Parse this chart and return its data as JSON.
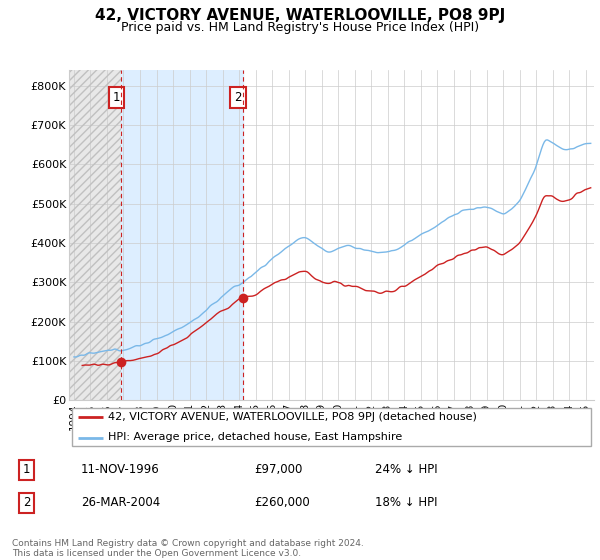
{
  "title": "42, VICTORY AVENUE, WATERLOOVILLE, PO8 9PJ",
  "subtitle": "Price paid vs. HM Land Registry's House Price Index (HPI)",
  "ylabel_ticks": [
    "£0",
    "£100K",
    "£200K",
    "£300K",
    "£400K",
    "£500K",
    "£600K",
    "£700K",
    "£800K"
  ],
  "ytick_values": [
    0,
    100000,
    200000,
    300000,
    400000,
    500000,
    600000,
    700000,
    800000
  ],
  "ylim": [
    0,
    840000
  ],
  "xlim_start": 1993.7,
  "xlim_end": 2025.5,
  "hpi_color": "#7ab8e8",
  "price_color": "#cc2222",
  "marker1_date": 1996.87,
  "marker1_price": 97000,
  "marker2_date": 2004.24,
  "marker2_price": 260000,
  "legend_label1": "42, VICTORY AVENUE, WATERLOOVILLE, PO8 9PJ (detached house)",
  "legend_label2": "HPI: Average price, detached house, East Hampshire",
  "table_row1_num": "1",
  "table_row1_date": "11-NOV-1996",
  "table_row1_price": "£97,000",
  "table_row1_hpi": "24% ↓ HPI",
  "table_row2_num": "2",
  "table_row2_date": "26-MAR-2004",
  "table_row2_price": "£260,000",
  "table_row2_hpi": "18% ↓ HPI",
  "footnote": "Contains HM Land Registry data © Crown copyright and database right 2024.\nThis data is licensed under the Open Government Licence v3.0.",
  "hatch_color": "#d0d0d0",
  "blue_fill_color": "#ddeeff",
  "grid_color": "#cccccc",
  "hatch_end": 1996.87,
  "blue_fill_end": 2004.24
}
